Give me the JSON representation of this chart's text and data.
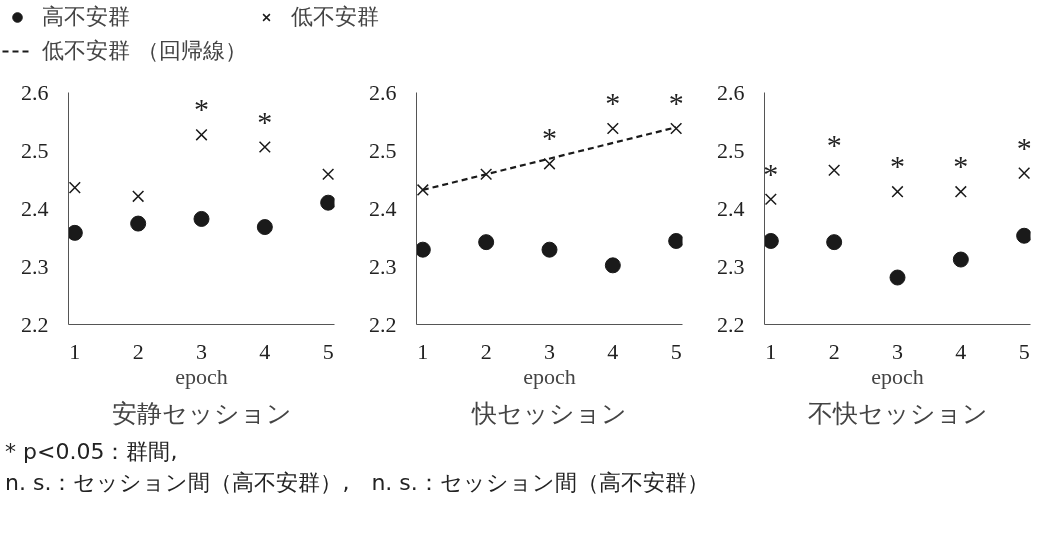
{
  "chart_data": [
    {
      "type": "scatter",
      "title": "安静セッション",
      "xlabel": "epoch",
      "x": [
        1,
        2,
        3,
        4,
        5
      ],
      "xlim": [
        0.9,
        5.1
      ],
      "xticks": [
        1,
        2,
        3,
        4,
        5
      ],
      "ylim": [
        2.2,
        2.6
      ],
      "yticks": [
        2.2,
        2.3,
        2.4,
        2.5,
        2.6
      ],
      "grid": false,
      "legend": "top",
      "series": [
        {
          "name": "高不安群",
          "color": "#1a1a1a",
          "marker": "circle",
          "values": [
            2.358,
            2.374,
            2.382,
            2.368,
            2.41
          ]
        },
        {
          "name": "低不安群",
          "color": "#1a1a1a",
          "marker": "cross",
          "values": [
            2.436,
            2.421,
            2.527,
            2.506,
            2.459
          ]
        }
      ],
      "annotations": [
        {
          "text": "*",
          "x": 3,
          "y": 2.527
        },
        {
          "text": "*",
          "x": 4,
          "y": 2.506
        },
        "* p<0.05：群間,",
        "n. s.：セッション間（高不安群）,　n. s.：セッション間（高不安群）"
      ]
    },
    {
      "type": "scatter",
      "title": "快セッション",
      "xlabel": "epoch",
      "x": [
        1,
        2,
        3,
        4,
        5
      ],
      "xlim": [
        0.9,
        5.1
      ],
      "xticks": [
        1,
        2,
        3,
        4,
        5
      ],
      "ylim": [
        2.2,
        2.6
      ],
      "yticks": [
        2.2,
        2.3,
        2.4,
        2.5,
        2.6
      ],
      "grid": false,
      "legend": "top",
      "series": [
        {
          "color": "#1a1a1a",
          "marker": "circle",
          "values": [
            2.329,
            2.342,
            2.329,
            2.302,
            2.344
          ]
        },
        {
          "color": "#1a1a1a",
          "marker": "cross",
          "values": [
            2.432,
            2.459,
            2.477,
            2.538,
            2.538
          ]
        },
        {
          "name": "低不安群 （回帰線）",
          "type": "line",
          "line_style": "dashed",
          "color": "#1a1a1a",
          "x": [
            1,
            5
          ],
          "values": [
            2.432,
            2.54
          ]
        }
      ],
      "annotations": [
        {
          "text": "*",
          "x": 3,
          "y": 2.477
        },
        {
          "text": "*",
          "x": 4,
          "y": 2.538
        },
        {
          "text": "*",
          "x": 5,
          "y": 2.538
        }
      ]
    },
    {
      "type": "scatter",
      "title": "不快セッション",
      "xlabel": "epoch",
      "x": [
        1,
        2,
        3,
        4,
        5
      ],
      "xlim": [
        0.9,
        5.1
      ],
      "xticks": [
        1,
        2,
        3,
        4,
        5
      ],
      "ylim": [
        2.2,
        2.6
      ],
      "yticks": [
        2.2,
        2.3,
        2.4,
        2.5,
        2.6
      ],
      "grid": false,
      "series": [
        {
          "color": "#1a1a1a",
          "marker": "circle",
          "values": [
            2.344,
            2.342,
            2.281,
            2.312,
            2.353
          ]
        },
        {
          "color": "#1a1a1a",
          "marker": "cross",
          "values": [
            2.416,
            2.466,
            2.429,
            2.429,
            2.461
          ]
        }
      ],
      "annotations": [
        {
          "text": "*",
          "x": 1,
          "y": 2.416
        },
        {
          "text": "*",
          "x": 2,
          "y": 2.466
        },
        {
          "text": "*",
          "x": 3,
          "y": 2.429
        },
        {
          "text": "*",
          "x": 4,
          "y": 2.429
        },
        {
          "text": "*",
          "x": 5,
          "y": 2.461
        }
      ]
    }
  ]
}
